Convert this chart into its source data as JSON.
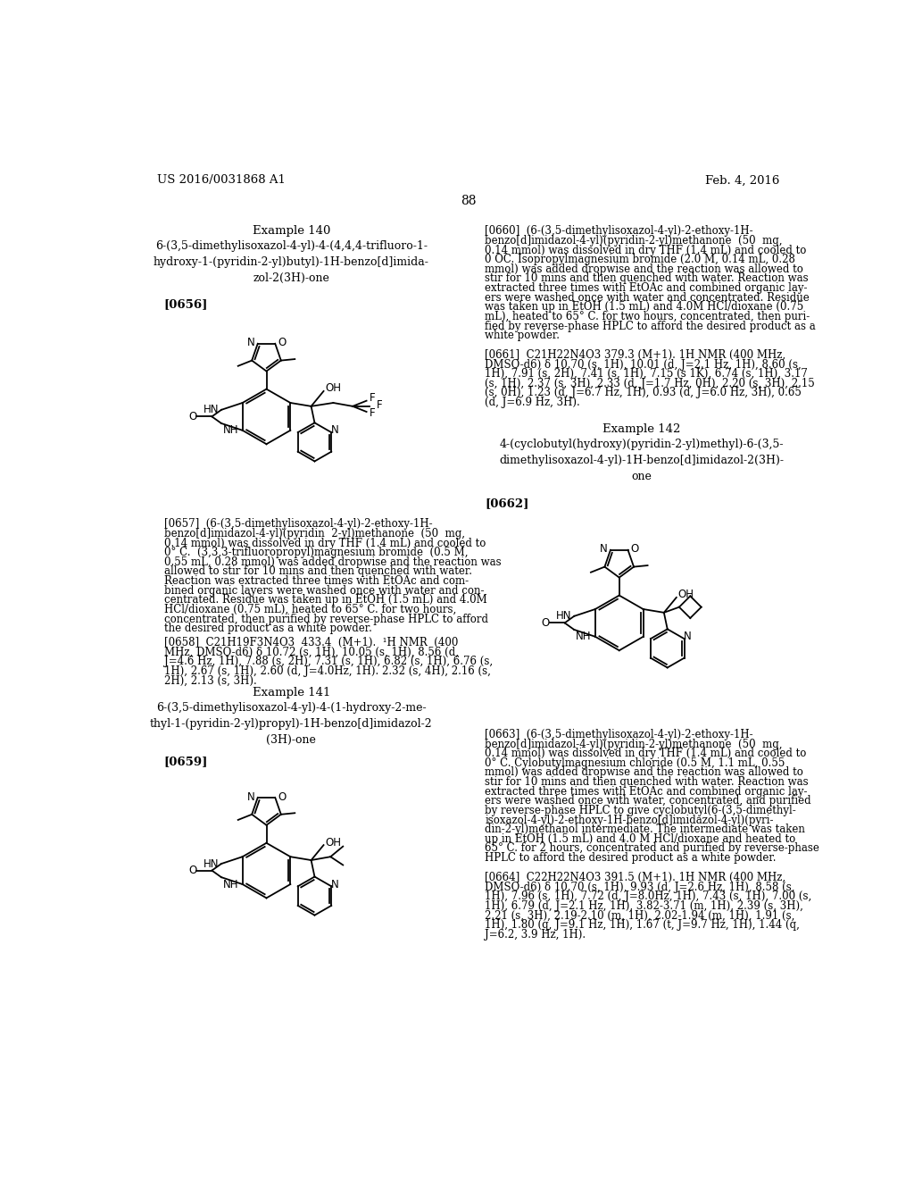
{
  "bg_color": "#ffffff",
  "header_left": "US 2016/0031868 A1",
  "header_right": "Feb. 4, 2016",
  "page_number": "88",
  "example140_title": "Example 140",
  "example140_compound": "6-(3,5-dimethylisoxazol-4-yl)-4-(4,4,4-trifluoro-1-\nhydroxy-1-(pyridin-2-yl)butyl)-1H-benzo[d]imida-\nzol-2(3H)-one",
  "para0656": "[0656]",
  "example141_title": "Example 141",
  "example141_compound": "6-(3,5-dimethylisoxazol-4-yl)-4-(1-hydroxy-2-me-\nthyl-1-(pyridin-2-yl)propyl)-1H-benzo[d]imidazol-2\n(3H)-one",
  "para0659": "[0659]",
  "example142_title": "Example 142",
  "example142_compound": "4-(cyclobutyl(hydroxy)(pyridin-2-yl)methyl)-6-(3,5-\ndimethylisoxazol-4-yl)-1H-benzo[d]imidazol-2(3H)-\none",
  "para0662": "[0662]"
}
